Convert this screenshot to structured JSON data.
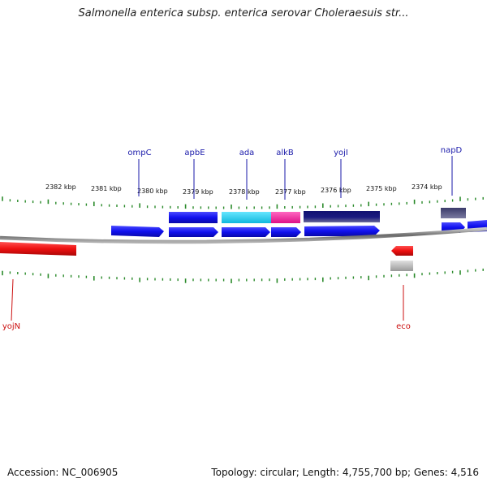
{
  "title": "Salmonella enterica subsp. enterica serovar Choleraesuis str...",
  "footer": {
    "accession": "Accession: NC_006905",
    "genome_info": "Topology: circular; Length: 4,755,700 bp; Genes: 4,516"
  },
  "scale_labels": [
    "2382 kbp",
    "2381 kbp",
    "2380 kbp",
    "2379 kbp",
    "2378 kbp",
    "2377 kbp",
    "2376 kbp",
    "2375 kbp",
    "2374 kbp"
  ],
  "gene_labels": {
    "forward": [
      "ompC",
      "apbE",
      "ada",
      "alkB",
      "yojI",
      "napD"
    ],
    "reverse": [
      "yojN",
      "eco"
    ]
  },
  "colors": {
    "forward_label": "#1a1aaa",
    "reverse_label": "#cc1111",
    "forward_gene": "#1515ee",
    "reverse_gene": "#ee1111",
    "tick": "#2a8a2a",
    "backbone": "#808080",
    "ada_feature": "#22ccee",
    "alkB_feature": "#ee2299",
    "dark_feature": "#101070"
  }
}
